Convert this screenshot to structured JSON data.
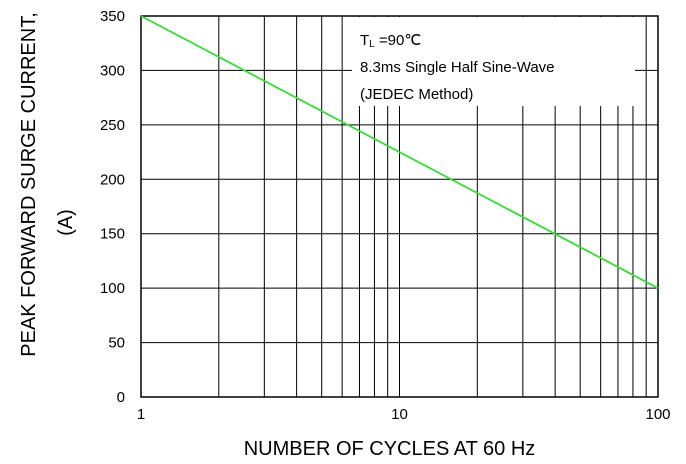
{
  "chart_data": {
    "type": "line",
    "x_scale": "log",
    "xlabel": "NUMBER OF CYCLES AT 60 Hz",
    "ylabel_line1": "PEAK FORWARD SURGE CURRENT,",
    "ylabel_line2": "(A)",
    "xlim": [
      1,
      100
    ],
    "ylim": [
      0,
      350
    ],
    "x_ticks": [
      1,
      10,
      100
    ],
    "x_tick_labels": [
      "1",
      "10",
      "100"
    ],
    "y_ticks": [
      0,
      50,
      100,
      150,
      200,
      250,
      300,
      350
    ],
    "y_tick_labels": [
      "0",
      "50",
      "100",
      "150",
      "200",
      "250",
      "300",
      "350"
    ],
    "grid": true,
    "series": [
      {
        "color": "#33dd33",
        "x": [
          1,
          100
        ],
        "y": [
          350,
          100
        ]
      }
    ],
    "annotations": {
      "line1_main": "T",
      "line1_sub": "L",
      "line1_rest": " =90℃",
      "line2": "8.3ms Single Half Sine-Wave",
      "line3": "(JEDEC Method)"
    }
  }
}
